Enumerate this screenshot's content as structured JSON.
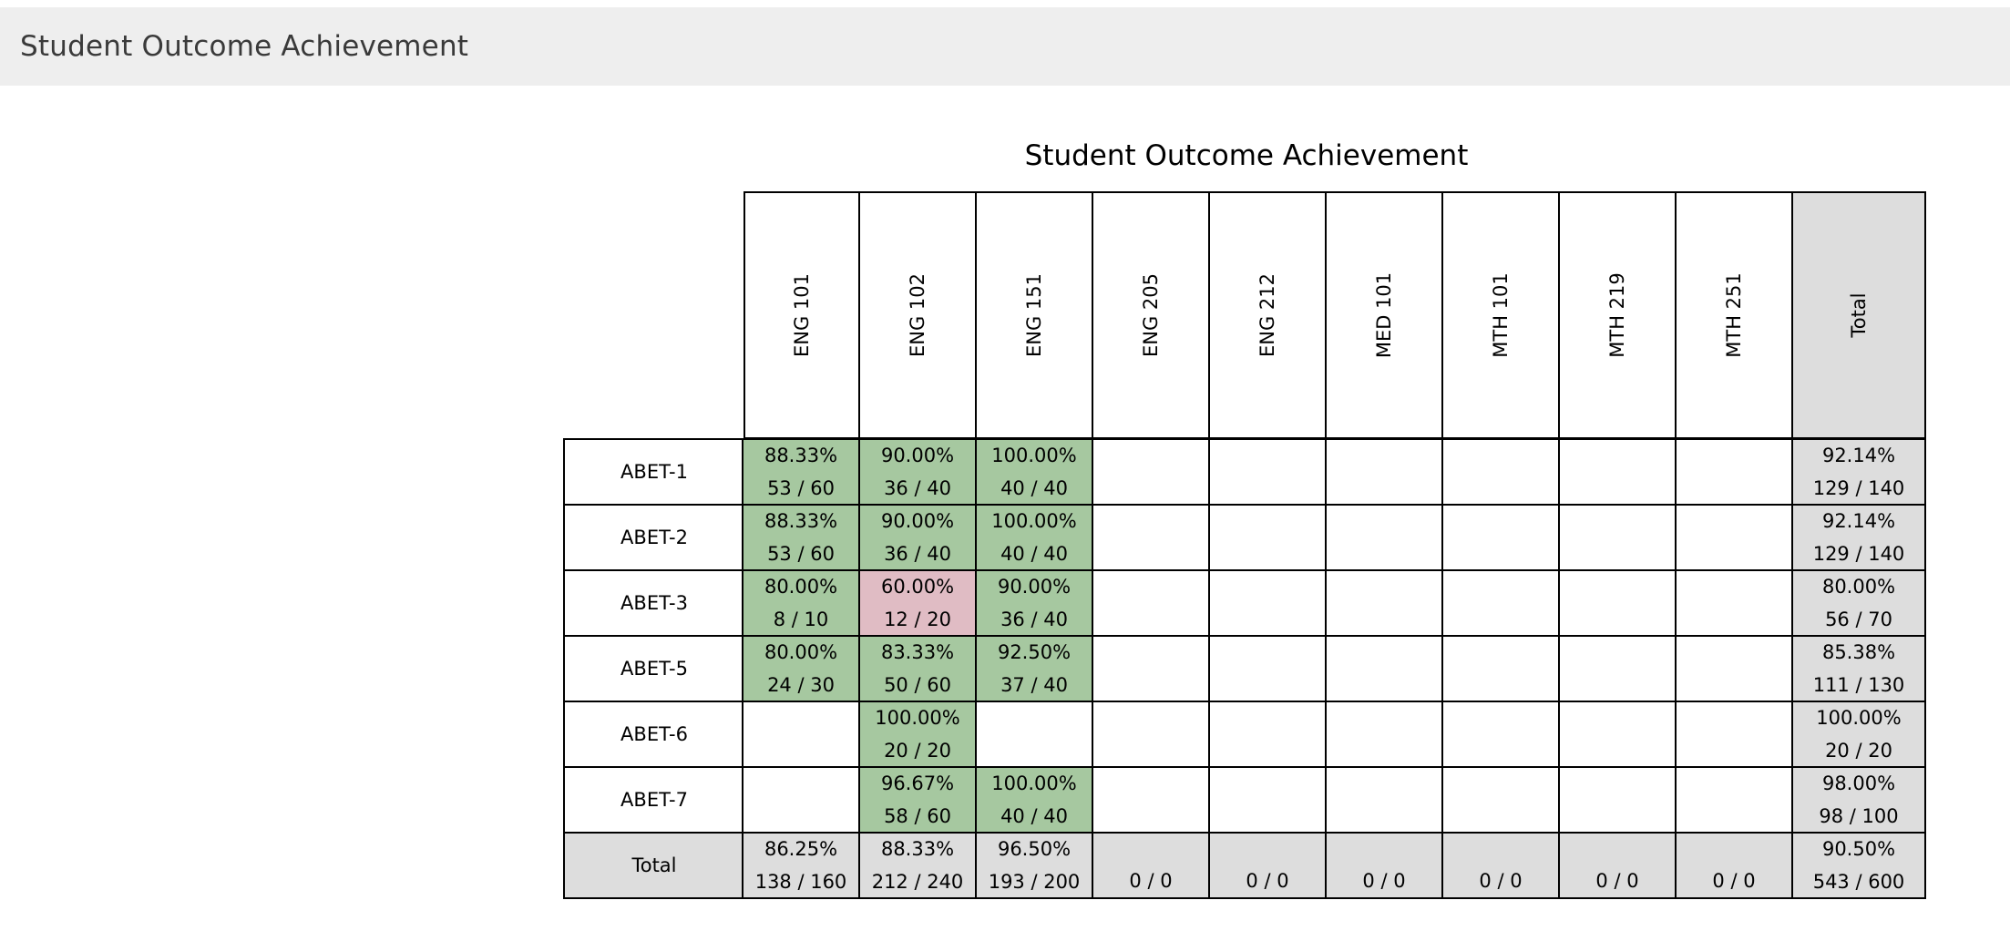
{
  "header": {
    "title": "Student Outcome Achievement"
  },
  "report": {
    "title": "Student Outcome Achievement",
    "columns": [
      "ENG 101",
      "ENG 102",
      "ENG 151",
      "ENG 205",
      "ENG 212",
      "MED 101",
      "MTH 101",
      "MTH 219",
      "MTH 251",
      "Total"
    ],
    "rows": [
      {
        "label": "ABET-1",
        "cells": [
          {
            "pct": "88.33%",
            "frac": "53 / 60",
            "status": "met"
          },
          {
            "pct": "90.00%",
            "frac": "36 / 40",
            "status": "met"
          },
          {
            "pct": "100.00%",
            "frac": "40 / 40",
            "status": "met"
          },
          {},
          {},
          {},
          {},
          {},
          {},
          {
            "pct": "92.14%",
            "frac": "129 / 140",
            "status": "total"
          }
        ]
      },
      {
        "label": "ABET-2",
        "cells": [
          {
            "pct": "88.33%",
            "frac": "53 / 60",
            "status": "met"
          },
          {
            "pct": "90.00%",
            "frac": "36 / 40",
            "status": "met"
          },
          {
            "pct": "100.00%",
            "frac": "40 / 40",
            "status": "met"
          },
          {},
          {},
          {},
          {},
          {},
          {},
          {
            "pct": "92.14%",
            "frac": "129 / 140",
            "status": "total"
          }
        ]
      },
      {
        "label": "ABET-3",
        "cells": [
          {
            "pct": "80.00%",
            "frac": "8 / 10",
            "status": "met"
          },
          {
            "pct": "60.00%",
            "frac": "12 / 20",
            "status": "unmet"
          },
          {
            "pct": "90.00%",
            "frac": "36 / 40",
            "status": "met"
          },
          {},
          {},
          {},
          {},
          {},
          {},
          {
            "pct": "80.00%",
            "frac": "56 / 70",
            "status": "total"
          }
        ]
      },
      {
        "label": "ABET-5",
        "cells": [
          {
            "pct": "80.00%",
            "frac": "24 / 30",
            "status": "met"
          },
          {
            "pct": "83.33%",
            "frac": "50 / 60",
            "status": "met"
          },
          {
            "pct": "92.50%",
            "frac": "37 / 40",
            "status": "met"
          },
          {},
          {},
          {},
          {},
          {},
          {},
          {
            "pct": "85.38%",
            "frac": "111 / 130",
            "status": "total"
          }
        ]
      },
      {
        "label": "ABET-6",
        "cells": [
          {},
          {
            "pct": "100.00%",
            "frac": "20 / 20",
            "status": "met"
          },
          {},
          {},
          {},
          {},
          {},
          {},
          {},
          {
            "pct": "100.00%",
            "frac": "20 / 20",
            "status": "total"
          }
        ]
      },
      {
        "label": "ABET-7",
        "cells": [
          {},
          {
            "pct": "96.67%",
            "frac": "58 / 60",
            "status": "met"
          },
          {
            "pct": "100.00%",
            "frac": "40 / 40",
            "status": "met"
          },
          {},
          {},
          {},
          {},
          {},
          {},
          {
            "pct": "98.00%",
            "frac": "98 / 100",
            "status": "total"
          }
        ]
      },
      {
        "label": "Total",
        "cells": [
          {
            "pct": "86.25%",
            "frac": "138 / 160",
            "status": "total"
          },
          {
            "pct": "88.33%",
            "frac": "212 / 240",
            "status": "total"
          },
          {
            "pct": "96.50%",
            "frac": "193 / 200",
            "status": "total"
          },
          {
            "frac": "0 / 0",
            "status": "total"
          },
          {
            "frac": "0 / 0",
            "status": "total"
          },
          {
            "frac": "0 / 0",
            "status": "total"
          },
          {
            "frac": "0 / 0",
            "status": "total"
          },
          {
            "frac": "0 / 0",
            "status": "total"
          },
          {
            "frac": "0 / 0",
            "status": "total"
          },
          {
            "pct": "90.50%",
            "frac": "543 / 600",
            "status": "total"
          }
        ]
      }
    ]
  },
  "colors": {
    "met": "#a6c8a0",
    "unmet": "#e0bcc4",
    "total": "#dddddd",
    "empty": "#ffffff",
    "header_bg": "#eeeeee"
  }
}
